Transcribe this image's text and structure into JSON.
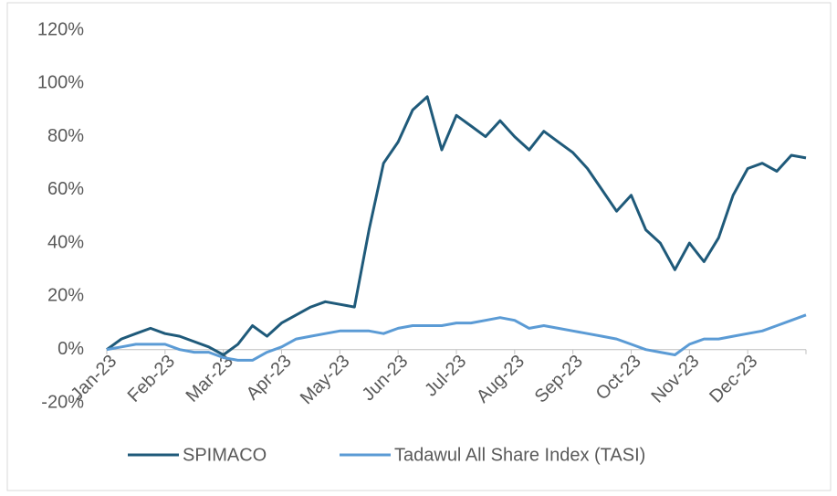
{
  "chart_data": {
    "type": "line",
    "categories": [
      "Jan-23",
      null,
      null,
      null,
      "Feb-23",
      null,
      null,
      null,
      "Mar-23",
      null,
      null,
      null,
      "Apr-23",
      null,
      null,
      null,
      "May-23",
      null,
      null,
      null,
      "Jun-23",
      null,
      null,
      null,
      "Jul-23",
      null,
      null,
      null,
      "Aug-23",
      null,
      null,
      null,
      "Sep-23",
      null,
      null,
      null,
      "Oct-23",
      null,
      null,
      null,
      "Nov-23",
      null,
      null,
      null,
      "Dec-23",
      null,
      null,
      null,
      null
    ],
    "series": [
      {
        "name": "SPIMACO",
        "color": "#1f5a7a",
        "values": [
          0,
          4,
          6,
          8,
          6,
          5,
          3,
          1,
          -2,
          2,
          9,
          5,
          10,
          13,
          16,
          18,
          17,
          16,
          45,
          70,
          78,
          90,
          95,
          75,
          88,
          84,
          80,
          86,
          80,
          75,
          82,
          78,
          74,
          68,
          60,
          52,
          58,
          45,
          40,
          30,
          40,
          33,
          42,
          58,
          68,
          70,
          67,
          73,
          72
        ]
      },
      {
        "name": "Tadawul All Share Index (TASI)",
        "color": "#5b9bd5",
        "values": [
          0,
          1,
          2,
          2,
          2,
          0,
          -1,
          -1,
          -3,
          -4,
          -4,
          -1,
          1,
          4,
          5,
          6,
          7,
          7,
          7,
          6,
          8,
          9,
          9,
          9,
          10,
          10,
          11,
          12,
          11,
          8,
          9,
          8,
          7,
          6,
          5,
          4,
          2,
          0,
          -1,
          -2,
          2,
          4,
          4,
          5,
          6,
          7,
          9,
          11,
          13
        ]
      }
    ],
    "ylim": [
      -20,
      120
    ],
    "yticks": [
      {
        "value": -20,
        "label": "-20%"
      },
      {
        "value": 0,
        "label": "0%"
      },
      {
        "value": 20,
        "label": "20%"
      },
      {
        "value": 40,
        "label": "40%"
      },
      {
        "value": 60,
        "label": "60%"
      },
      {
        "value": 80,
        "label": "80%"
      },
      {
        "value": 100,
        "label": "100%"
      },
      {
        "value": 120,
        "label": "120%"
      }
    ],
    "legend": "bottom"
  }
}
